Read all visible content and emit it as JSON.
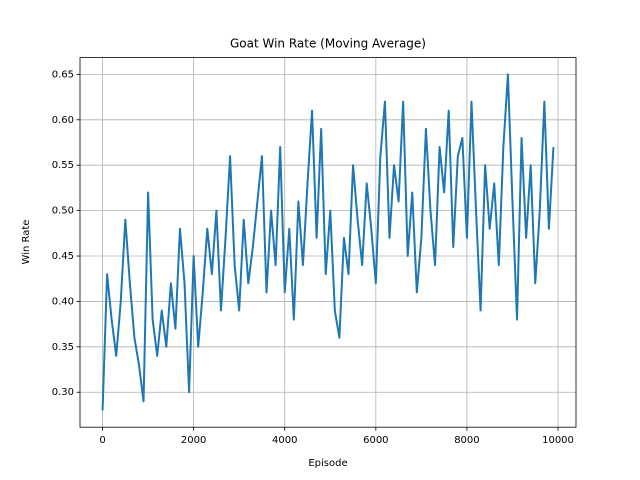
{
  "chart_data": {
    "type": "line",
    "title": "Goat Win Rate (Moving Average)",
    "x_label": "Episode",
    "y_label": "Win Rate",
    "x": [
      0,
      100,
      200,
      300,
      400,
      500,
      600,
      700,
      800,
      900,
      1000,
      1100,
      1200,
      1300,
      1400,
      1500,
      1600,
      1700,
      1800,
      1900,
      2000,
      2100,
      2200,
      2300,
      2400,
      2500,
      2600,
      2700,
      2800,
      2900,
      3000,
      3100,
      3200,
      3300,
      3400,
      3500,
      3600,
      3700,
      3800,
      3900,
      4000,
      4100,
      4200,
      4300,
      4400,
      4500,
      4600,
      4700,
      4800,
      4900,
      5000,
      5100,
      5200,
      5300,
      5400,
      5500,
      5600,
      5700,
      5800,
      5900,
      6000,
      6100,
      6200,
      6300,
      6400,
      6500,
      6600,
      6700,
      6800,
      6900,
      7000,
      7100,
      7200,
      7300,
      7400,
      7500,
      7600,
      7700,
      7800,
      7900,
      8000,
      8100,
      8200,
      8300,
      8400,
      8500,
      8600,
      8700,
      8800,
      8900,
      9000,
      9100,
      9200,
      9300,
      9400,
      9500,
      9600,
      9700,
      9800,
      9900
    ],
    "series": [
      {
        "color": "#1f77b4",
        "values": [
          0.28,
          0.43,
          0.38,
          0.34,
          0.4,
          0.49,
          0.42,
          0.36,
          0.33,
          0.29,
          0.52,
          0.38,
          0.34,
          0.39,
          0.35,
          0.42,
          0.37,
          0.48,
          0.42,
          0.3,
          0.45,
          0.35,
          0.41,
          0.48,
          0.43,
          0.5,
          0.39,
          0.47,
          0.56,
          0.44,
          0.39,
          0.49,
          0.42,
          0.46,
          0.51,
          0.56,
          0.41,
          0.5,
          0.44,
          0.57,
          0.41,
          0.48,
          0.38,
          0.51,
          0.44,
          0.53,
          0.61,
          0.47,
          0.59,
          0.43,
          0.5,
          0.39,
          0.36,
          0.47,
          0.43,
          0.55,
          0.49,
          0.44,
          0.53,
          0.48,
          0.42,
          0.56,
          0.62,
          0.47,
          0.55,
          0.51,
          0.62,
          0.45,
          0.52,
          0.41,
          0.47,
          0.59,
          0.5,
          0.44,
          0.57,
          0.52,
          0.61,
          0.46,
          0.56,
          0.58,
          0.47,
          0.62,
          0.5,
          0.39,
          0.55,
          0.48,
          0.53,
          0.44,
          0.57,
          0.65,
          0.51,
          0.38,
          0.58,
          0.47,
          0.55,
          0.42,
          0.5,
          0.62,
          0.48,
          0.57
        ]
      }
    ],
    "xlim": [
      -495,
      10395
    ],
    "ylim": [
      0.2615,
      0.6685
    ],
    "xticks": [
      0,
      2000,
      4000,
      6000,
      8000,
      10000
    ],
    "yticks": [
      {
        "value": 0.3,
        "label": "0.30"
      },
      0.35,
      {
        "value": 0.4,
        "label": "0.40"
      },
      0.45,
      {
        "value": 0.5,
        "label": "0.50"
      },
      0.55,
      {
        "value": 0.6,
        "label": "0.60"
      },
      0.65
    ],
    "grid": true
  }
}
